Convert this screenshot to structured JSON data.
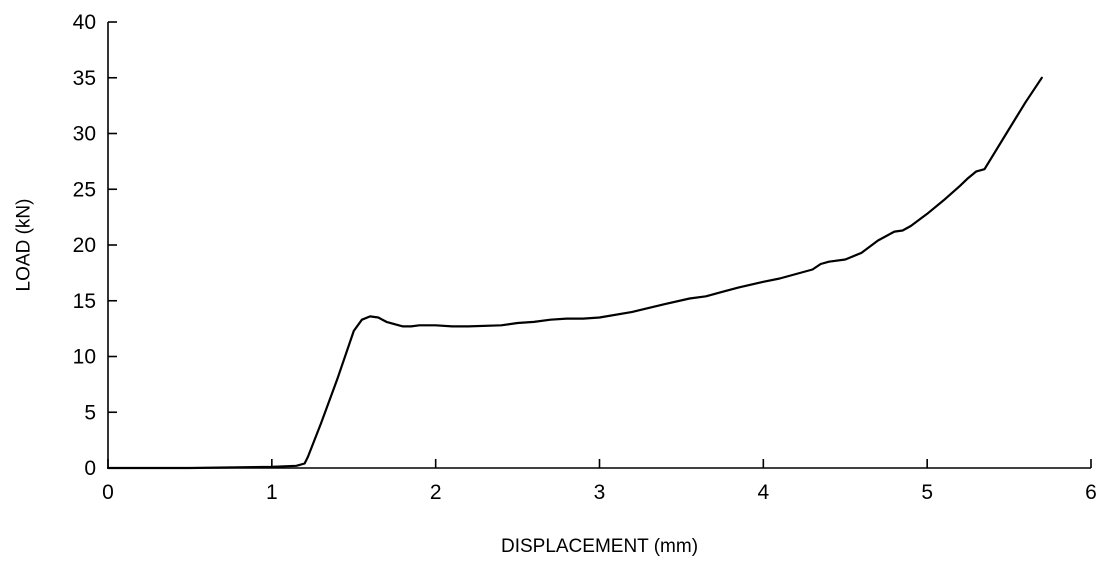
{
  "chart_data": {
    "type": "line",
    "xlabel": "DISPLACEMENT (mm)",
    "ylabel": "LOAD (kN)",
    "xlim": [
      0,
      6
    ],
    "ylim": [
      0,
      40
    ],
    "xticks": [
      0,
      1,
      2,
      3,
      4,
      5,
      6
    ],
    "yticks": [
      0,
      5,
      10,
      15,
      20,
      25,
      30,
      35,
      40
    ],
    "grid": false,
    "series": [
      {
        "color": "#000000",
        "x": [
          0,
          0.5,
          1.0,
          1.15,
          1.2,
          1.22,
          1.3,
          1.4,
          1.5,
          1.55,
          1.6,
          1.65,
          1.7,
          1.8,
          1.85,
          1.9,
          2.0,
          2.1,
          2.2,
          2.4,
          2.5,
          2.6,
          2.7,
          2.8,
          2.9,
          3.0,
          3.2,
          3.4,
          3.55,
          3.65,
          3.75,
          3.85,
          4.0,
          4.1,
          4.2,
          4.3,
          4.35,
          4.4,
          4.5,
          4.6,
          4.7,
          4.8,
          4.85,
          4.9,
          5.0,
          5.1,
          5.2,
          5.25,
          5.3,
          5.35,
          5.4,
          5.5,
          5.6,
          5.7
        ],
        "y": [
          0,
          0,
          0.1,
          0.2,
          0.4,
          1.0,
          4.0,
          8.0,
          12.3,
          13.3,
          13.6,
          13.5,
          13.1,
          12.7,
          12.7,
          12.8,
          12.8,
          12.7,
          12.7,
          12.8,
          13.0,
          13.1,
          13.3,
          13.4,
          13.4,
          13.5,
          14.0,
          14.7,
          15.2,
          15.4,
          15.8,
          16.2,
          16.7,
          17.0,
          17.4,
          17.8,
          18.3,
          18.5,
          18.7,
          19.3,
          20.4,
          21.2,
          21.3,
          21.7,
          22.8,
          24.0,
          25.3,
          26.0,
          26.6,
          26.8,
          28.0,
          30.4,
          32.8,
          35.0
        ]
      }
    ]
  }
}
